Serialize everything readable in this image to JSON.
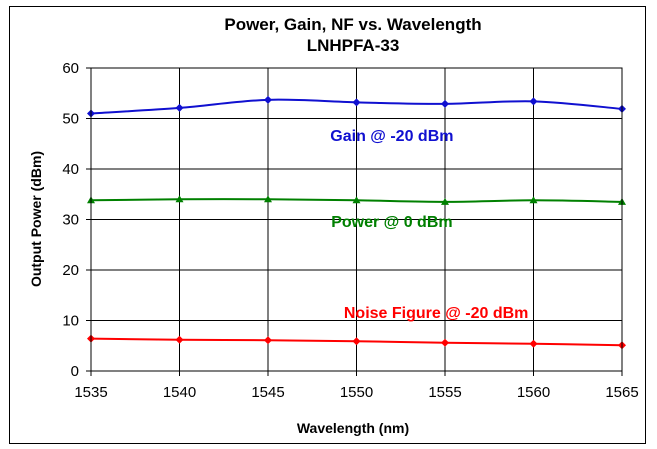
{
  "chart_data": {
    "type": "line",
    "title": "Power, Gain, NF vs. Wavelength",
    "subtitle": "LNHPFA-33",
    "xlabel": "Wavelength (nm)",
    "ylabel": "Output Power (dBm)",
    "x": [
      1535,
      1540,
      1545,
      1550,
      1555,
      1560,
      1565
    ],
    "xlim": [
      1535,
      1565
    ],
    "ylim": [
      0,
      60
    ],
    "xticks": [
      "1535",
      "1540",
      "1545",
      "1550",
      "1555",
      "1560",
      "1565"
    ],
    "yticks": [
      "0",
      "10",
      "20",
      "30",
      "40",
      "50",
      "60"
    ],
    "grid": true,
    "series": [
      {
        "name": "Gain @ -20 dBm",
        "color": "#1010d0",
        "marker": "diamond",
        "values": [
          51.0,
          52.1,
          53.7,
          53.2,
          52.9,
          53.4,
          51.9
        ]
      },
      {
        "name": "Power @ 0 dBm",
        "color": "#008000",
        "marker": "triangle",
        "values": [
          33.8,
          34.0,
          34.0,
          33.8,
          33.5,
          33.8,
          33.5
        ]
      },
      {
        "name": "Noise Figure @ -20 dBm",
        "color": "#ff0000",
        "marker": "diamond",
        "values": [
          6.4,
          6.2,
          6.1,
          5.9,
          5.6,
          5.4,
          5.1
        ]
      }
    ],
    "annotations": [
      {
        "text": "Gain @ -20 dBm",
        "color": "#1010d0",
        "x": 1552,
        "y": 45.5
      },
      {
        "text": "Power @ 0 dBm",
        "color": "#008000",
        "x": 1552,
        "y": 28.5
      },
      {
        "text": "Noise Figure @ -20 dBm",
        "color": "#ff0000",
        "x": 1554.5,
        "y": 10.5
      }
    ]
  }
}
